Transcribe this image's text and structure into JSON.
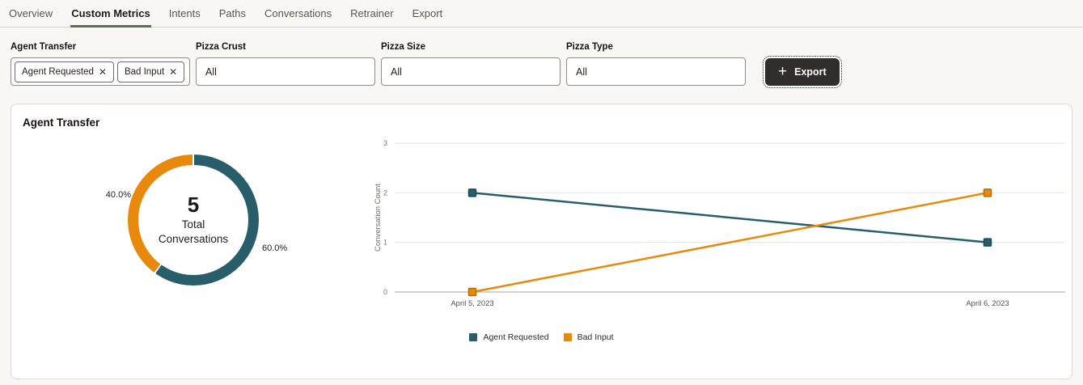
{
  "tabs": {
    "items": [
      {
        "label": "Overview",
        "active": false
      },
      {
        "label": "Custom Metrics",
        "active": true
      },
      {
        "label": "Intents",
        "active": false
      },
      {
        "label": "Paths",
        "active": false
      },
      {
        "label": "Conversations",
        "active": false
      },
      {
        "label": "Retrainer",
        "active": false
      },
      {
        "label": "Export",
        "active": false
      }
    ]
  },
  "filters": {
    "chip_remove_glyph": "✕",
    "agent_transfer": {
      "label": "Agent Transfer",
      "chips": [
        {
          "label": "Agent Requested"
        },
        {
          "label": "Bad Input"
        }
      ]
    },
    "pizza_crust": {
      "label": "Pizza Crust",
      "value": "All"
    },
    "pizza_size": {
      "label": "Pizza Size",
      "value": "All"
    },
    "pizza_type": {
      "label": "Pizza Type",
      "value": "All"
    },
    "export_button": {
      "label": "Export",
      "icon_glyph": "+"
    }
  },
  "card": {
    "title": "Agent Transfer"
  },
  "colors": {
    "teal": "#275e69",
    "orange": "#e8890c",
    "accent_green": "#5b7052",
    "grid": "#e7e4e0",
    "axis_zero": "#aaa6a1"
  },
  "chart_data": [
    {
      "type": "pie",
      "title": "Agent Transfer",
      "donut": true,
      "slices": [
        {
          "label": "Agent Requested",
          "pct": 60.0,
          "display": "60.0%",
          "color": "#275e69"
        },
        {
          "label": "Bad Input",
          "pct": 40.0,
          "display": "40.0%",
          "color": "#e8890c"
        }
      ],
      "center": {
        "value": "5",
        "line1": "Total",
        "line2": "Conversations"
      }
    },
    {
      "type": "line",
      "x": [
        "April 5, 2023",
        "April 6, 2023"
      ],
      "series": [
        {
          "name": "Agent Requested",
          "values": [
            2,
            1
          ],
          "color": "#275e69",
          "marker_border": "#1c4a55"
        },
        {
          "name": "Bad Input",
          "values": [
            0,
            2
          ],
          "color": "#e8890c",
          "marker_border": "#b06e06"
        }
      ],
      "ylabel": "Conversation Count",
      "ylim": [
        0,
        3
      ],
      "yticks": [
        0,
        1,
        2,
        3
      ],
      "grid": true,
      "legend_position": "bottom",
      "marker": "square"
    }
  ]
}
